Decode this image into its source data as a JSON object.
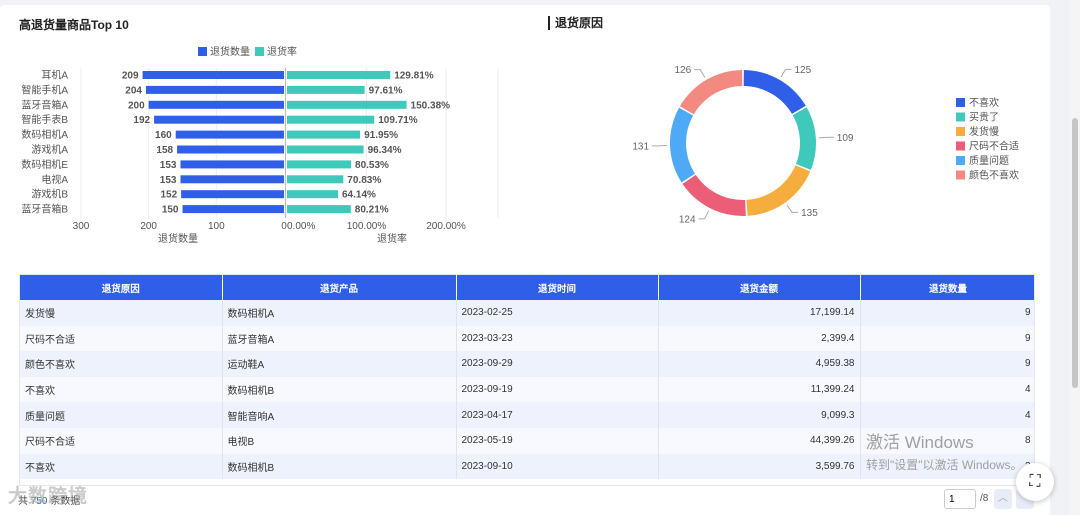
{
  "left_panel": {
    "title": "高退货量商品Top 10",
    "legend": [
      {
        "label": "退货数量",
        "color": "#2f5fe8"
      },
      {
        "label": "退货率",
        "color": "#3ec9bb"
      }
    ]
  },
  "right_panel": {
    "title": "退货原因"
  },
  "chart_data": [
    {
      "type": "bar",
      "orientation": "horizontal-butterfly",
      "categories": [
        "耳机A",
        "智能手机A",
        "蓝牙音箱A",
        "智能手表B",
        "数码相机A",
        "游戏机A",
        "数码相机E",
        "电视A",
        "游戏机B",
        "蓝牙音箱B"
      ],
      "series": [
        {
          "name": "退货数量",
          "values": [
            209,
            204,
            200,
            192,
            160,
            158,
            153,
            153,
            152,
            150
          ],
          "labels": [
            "209",
            "204",
            "200",
            "192",
            "160",
            "158",
            "153",
            "153",
            "152",
            "150"
          ],
          "color": "#2f5fe8"
        },
        {
          "name": "退货率",
          "values": [
            129.81,
            97.61,
            150.38,
            109.71,
            91.95,
            96.34,
            80.53,
            70.83,
            64.14,
            80.21
          ],
          "labels": [
            "129.81%",
            "97.61%",
            "150.38%",
            "109.71%",
            "91.95%",
            "96.34%",
            "80.53%",
            "70.83%",
            "64.14%",
            "80.21%"
          ],
          "color": "#3ec9bb"
        }
      ],
      "left_axis": {
        "label": "退货数量",
        "range": [
          300,
          0
        ],
        "ticks": [
          "300",
          "200",
          "100",
          "0"
        ]
      },
      "right_axis": {
        "label": "退货率",
        "range": [
          0,
          200
        ],
        "ticks": [
          "0.00%",
          "100.00%",
          "200.00%"
        ]
      },
      "legend": "top-center"
    },
    {
      "type": "pie",
      "style": "donut",
      "slices": [
        {
          "name": "不喜欢",
          "value": 125,
          "color": "#2f5fe8"
        },
        {
          "name": "买贵了",
          "value": 109,
          "color": "#3ec9bb"
        },
        {
          "name": "发货慢",
          "value": 135,
          "color": "#f5ad3d"
        },
        {
          "name": "尺码不合适",
          "value": 124,
          "color": "#ec5d78"
        },
        {
          "name": "质量问题",
          "value": 131,
          "color": "#4eaaf7"
        },
        {
          "name": "颜色不喜欢",
          "value": 126,
          "color": "#f38a82"
        }
      ],
      "legend": "right"
    }
  ],
  "table": {
    "columns": [
      "退货原因",
      "退货产品",
      "退货时间",
      "退货金额",
      "退货数量"
    ],
    "rows": [
      [
        "发货慢",
        "数码相机A",
        "2023-02-25",
        "17,199.14",
        "9"
      ],
      [
        "尺码不合适",
        "蓝牙音箱A",
        "2023-03-23",
        "2,399.4",
        "9"
      ],
      [
        "颜色不喜欢",
        "运动鞋A",
        "2023-09-29",
        "4,959.38",
        "9"
      ],
      [
        "不喜欢",
        "数码相机B",
        "2023-09-19",
        "11,399.24",
        "4"
      ],
      [
        "质量问题",
        "智能音响A",
        "2023-04-17",
        "9,099.3",
        "4"
      ],
      [
        "尺码不合适",
        "电视B",
        "2023-05-19",
        "44,399.26",
        "8"
      ],
      [
        "不喜欢",
        "数码相机B",
        "2023-09-10",
        "3,599.76",
        "3"
      ]
    ]
  },
  "footer": {
    "total_prefix": "共",
    "total_count": "750",
    "total_suffix": "条数据",
    "page_value": "1",
    "page_total": "/8",
    "logo_watermark": "大数跨境"
  },
  "watermark": {
    "line1": "激活 Windows",
    "line2": "转到\"设置\"以激活 Windows。"
  }
}
